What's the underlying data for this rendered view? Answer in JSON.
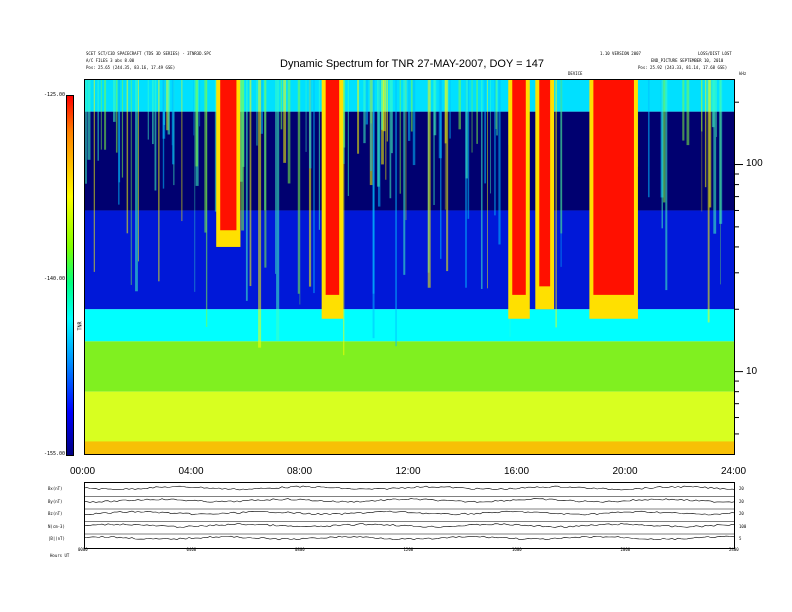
{
  "header": {
    "title": "Dynamic Spectrum for TNR 27-MAY-2007, DOY = 147",
    "left_line1": "SCET SCT/C3D SPACECRAFT (TDS 3D SERIES) - 3TNR3D.SPC",
    "left_line2": "A/C FILES 3 abs 8.00",
    "left_line3": "Pos: 25.65 (244.35, 83.16, 17.49 GSE)",
    "right_line1": "1.10 VERSION 2007",
    "right_line2": "LOSS/DIST LOST",
    "right_line3": "END_PICTURE SEPTEMBER 10, 2010",
    "right_line4": "Pos: 25.92 (243.33, 81.14, 17.68 GSE)",
    "mid_small": "DEVICE",
    "right_corner": "kHz"
  },
  "colorbar": {
    "top_label": "-125.00",
    "mid_label": "-140.00",
    "bottom_label": "-155.00",
    "axis_label": "TNR"
  },
  "chart_data": {
    "type": "heatmap",
    "title": "Dynamic Spectrum for TNR 27-MAY-2007, DOY = 147",
    "x_tick_labels": [
      "00:00",
      "04:00",
      "08:00",
      "12:00",
      "16:00",
      "20:00",
      "24:00"
    ],
    "x_range_hours": [
      0,
      24
    ],
    "y_scale": "log",
    "y_tick_labels": [
      "100",
      "10"
    ],
    "y_range_khz": [
      4,
      256
    ],
    "colorbar_range_db": [
      -155,
      -125
    ],
    "colormap": [
      "#000080",
      "#0000ff",
      "#00ffff",
      "#80ff00",
      "#ffff00",
      "#ff0000"
    ],
    "strong_emission_intervals_hours": [
      {
        "start": 8.9,
        "end": 9.4,
        "low_khz": 18
      },
      {
        "start": 15.8,
        "end": 16.3,
        "low_khz": 18
      },
      {
        "start": 16.8,
        "end": 17.2,
        "low_khz": 20
      },
      {
        "start": 18.8,
        "end": 20.3,
        "low_khz": 18
      },
      {
        "start": 5.0,
        "end": 5.6,
        "low_khz": 40
      }
    ],
    "band_edges_khz": [
      256,
      180,
      60,
      20,
      14,
      8
    ],
    "band_colors": [
      "#00e0ff",
      "#000070",
      "#0018d8",
      "#00ffff",
      "#80f020",
      "#d8ff20",
      "#ffe000"
    ]
  },
  "lower_panels": {
    "labels": [
      "Bx(nT)",
      "By(nT)",
      "Bz(nT)",
      "N(cm-3)",
      "|B|(nT)"
    ],
    "right_values": [
      "20",
      "20",
      "20",
      "100",
      "5"
    ],
    "time_labels": [
      "0000",
      "0400",
      "0800",
      "1200",
      "1600",
      "2000",
      "2400"
    ],
    "footer": "Hours  UT"
  }
}
